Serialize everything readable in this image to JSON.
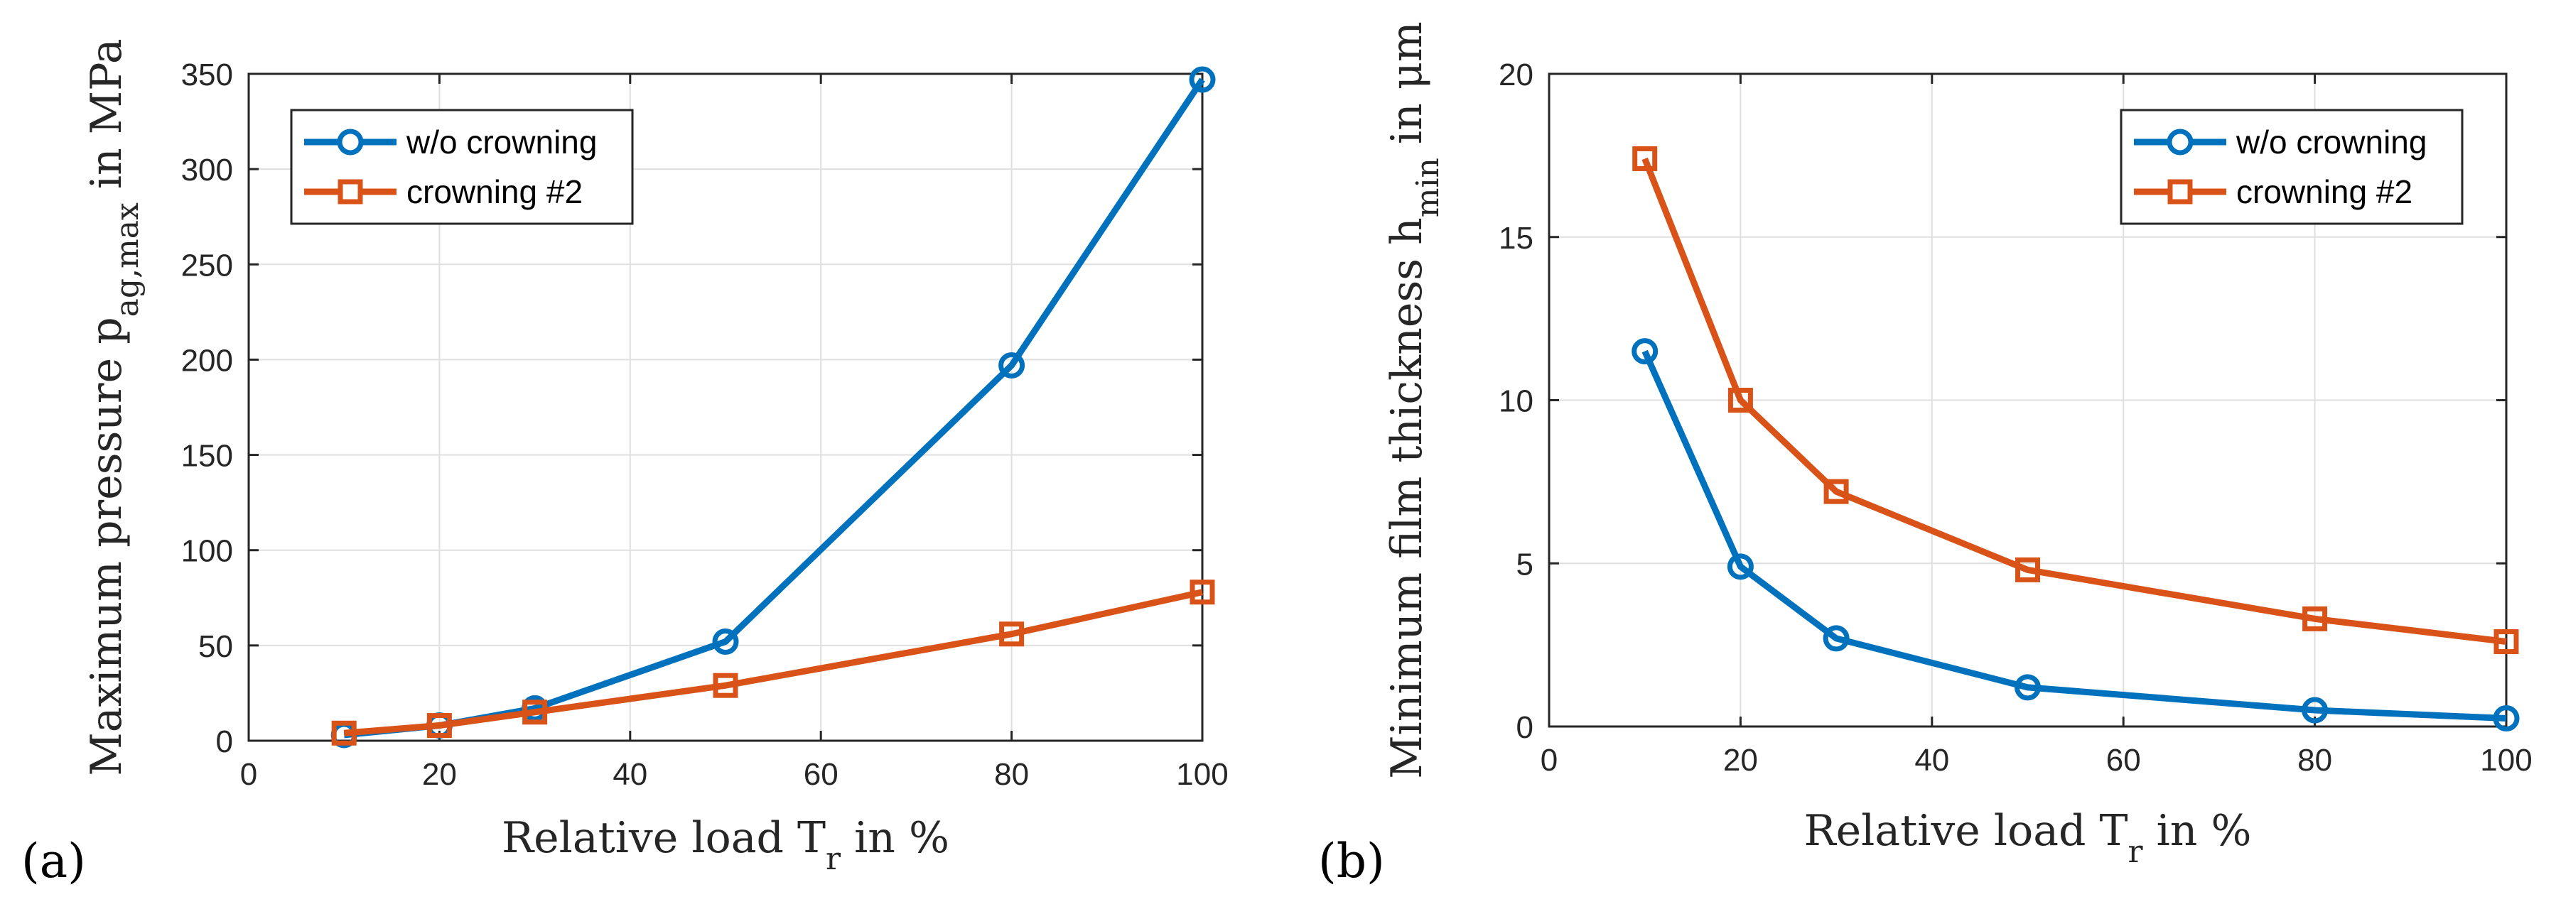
{
  "chart_data": [
    {
      "type": "line",
      "panel_label": "(a)",
      "xlabel": {
        "main": "Relative load T",
        "sub": "r",
        "suffix": " in %"
      },
      "ylabel": {
        "main": "Maximum pressure p",
        "sub": "ag,max",
        "suffix": " in MPa"
      },
      "xlim": [
        0,
        100
      ],
      "ylim": [
        0,
        350
      ],
      "xticks": [
        0,
        20,
        40,
        60,
        80,
        100
      ],
      "yticks": [
        0,
        50,
        100,
        150,
        200,
        250,
        300,
        350
      ],
      "legend": "top-left",
      "series": [
        {
          "name": "w/o crowning",
          "marker": "circle",
          "color": "#0072BD",
          "x": [
            10,
            20,
            30,
            50,
            80,
            100
          ],
          "y": [
            3,
            8,
            17,
            52,
            197,
            347
          ]
        },
        {
          "name": "crowning #2",
          "marker": "square",
          "color": "#D95319",
          "x": [
            10,
            20,
            30,
            50,
            80,
            100
          ],
          "y": [
            4,
            8,
            15,
            29,
            56,
            78
          ]
        }
      ]
    },
    {
      "type": "line",
      "panel_label": "(b)",
      "xlabel": {
        "main": "Relative load T",
        "sub": "r",
        "suffix": " in %"
      },
      "ylabel": {
        "main": "Minimum film thickness h",
        "sub": "min",
        "suffix": " in μm"
      },
      "xlim": [
        0,
        100
      ],
      "ylim": [
        0,
        20
      ],
      "xticks": [
        0,
        20,
        40,
        60,
        80,
        100
      ],
      "yticks": [
        0,
        5,
        10,
        15,
        20
      ],
      "legend": "top-right",
      "series": [
        {
          "name": "w/o crowning",
          "marker": "circle",
          "color": "#0072BD",
          "x": [
            10,
            20,
            30,
            50,
            80,
            100
          ],
          "y": [
            11.5,
            4.9,
            2.7,
            1.2,
            0.5,
            0.25
          ]
        },
        {
          "name": "crowning #2",
          "marker": "square",
          "color": "#D95319",
          "x": [
            10,
            20,
            30,
            50,
            80,
            100
          ],
          "y": [
            17.4,
            10.0,
            7.2,
            4.8,
            3.3,
            2.6
          ]
        }
      ]
    }
  ]
}
